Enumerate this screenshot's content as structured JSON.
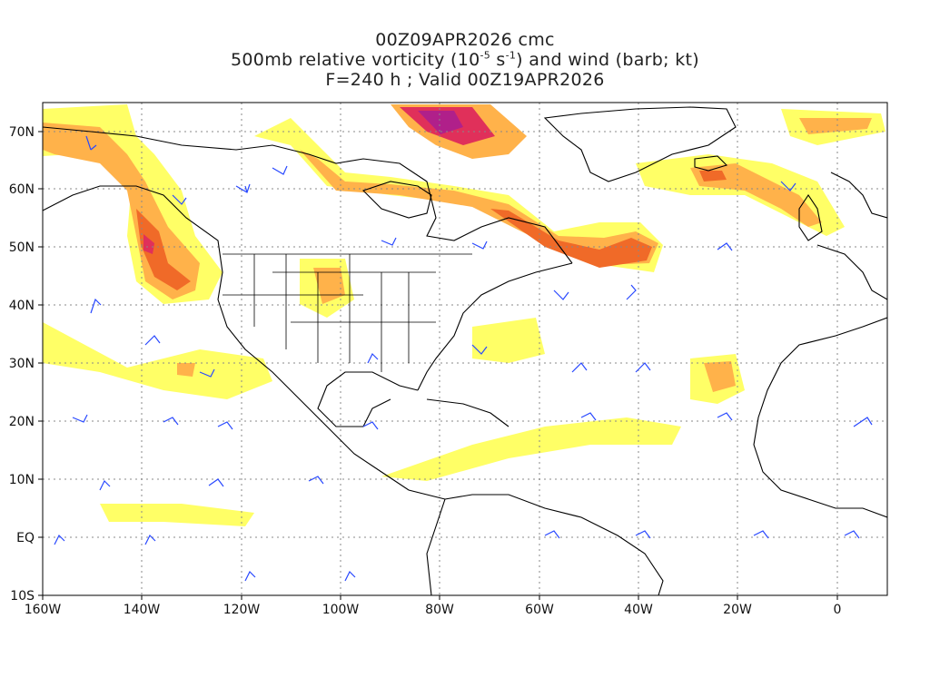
{
  "title": {
    "line1": "00Z09APR2026 cmc",
    "line2_pre": "500mb relative vorticity (10",
    "line2_sup1": "-5",
    "line2_mid": " s",
    "line2_sup2": "-1",
    "line2_post": ") and wind (barb; kt)",
    "line3": "F=240 h ; Valid 00Z19APR2026"
  },
  "axes": {
    "lon_labels": [
      "160W",
      "140W",
      "120W",
      "100W",
      "80W",
      "60W",
      "40W",
      "20W",
      "0"
    ],
    "lat_labels": [
      "70N",
      "60N",
      "50N",
      "40N",
      "30N",
      "20N",
      "10N",
      "EQ",
      "10S"
    ]
  },
  "colors": {
    "shade_1": "#ffff66",
    "shade_2": "#f5e84a",
    "shade_3": "#ffb24a",
    "shade_4": "#f06a28",
    "shade_5": "#e0305a",
    "shade_6": "#b0208a",
    "barb": "#2848ff",
    "coast": "#000000",
    "grid": "#888888"
  }
}
